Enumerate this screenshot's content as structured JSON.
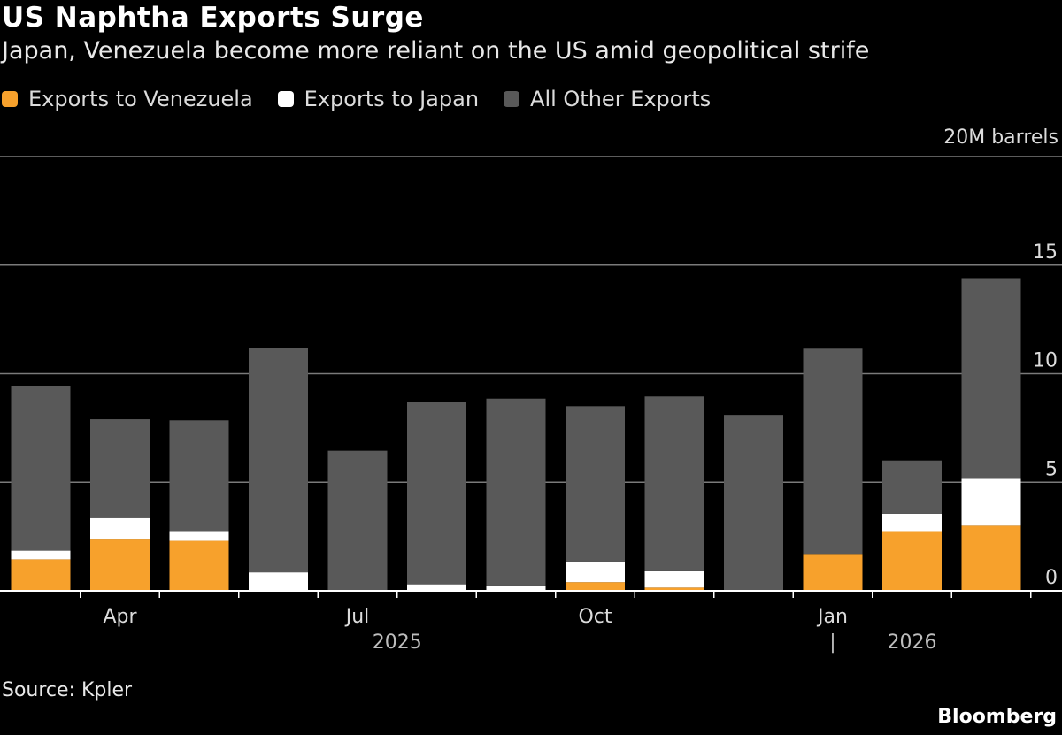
{
  "header": {
    "title": "US Naphtha Exports Surge",
    "subtitle": "Japan, Venezuela become more reliant on the US amid geopolitical strife"
  },
  "legend": [
    {
      "label": "Exports to Venezuela",
      "color": "#f7a12c"
    },
    {
      "label": "Exports to Japan",
      "color": "#ffffff"
    },
    {
      "label": "All Other Exports",
      "color": "#595959"
    }
  ],
  "footer": {
    "source": "Source: Kpler",
    "brand": "Bloomberg"
  },
  "chart_data": {
    "type": "bar",
    "stacked": true,
    "unit_label": "20M barrels",
    "ylim": [
      0,
      20
    ],
    "yticks": [
      0,
      5,
      10,
      15,
      20
    ],
    "ytick_labels": [
      "0",
      "5",
      "10",
      "15",
      ""
    ],
    "grid": true,
    "categories": [
      "2025-03",
      "2025-04",
      "2025-05",
      "2025-06",
      "2025-07",
      "2025-08",
      "2025-09",
      "2025-10",
      "2025-11",
      "2025-12",
      "2026-01",
      "2026-02",
      "2026-03"
    ],
    "x_tick_labels": [
      {
        "index": 1,
        "label": "Apr"
      },
      {
        "index": 4,
        "label": "Jul"
      },
      {
        "index": 7,
        "label": "Oct"
      },
      {
        "index": 10,
        "label": "Jan"
      }
    ],
    "year_labels": [
      {
        "label": "2025",
        "from": 0,
        "to": 9
      },
      {
        "label": "2026",
        "from": 10,
        "to": 12
      }
    ],
    "year_divider_label": "|",
    "series": [
      {
        "name": "Exports to Venezuela",
        "color": "#f7a12c",
        "values": [
          1.45,
          2.4,
          2.3,
          0,
          0,
          0,
          0,
          0.4,
          0.15,
          0,
          1.7,
          2.75,
          3.0
        ]
      },
      {
        "name": "Exports to Japan",
        "color": "#ffffff",
        "values": [
          0.4,
          0.95,
          0.45,
          0.85,
          0,
          0.3,
          0.25,
          0.95,
          0.75,
          0,
          0,
          0.8,
          2.2
        ]
      },
      {
        "name": "All Other Exports",
        "color": "#595959",
        "values": [
          7.6,
          4.55,
          5.1,
          10.35,
          6.45,
          8.4,
          8.6,
          7.15,
          8.05,
          8.1,
          9.45,
          2.45,
          9.2
        ]
      }
    ]
  }
}
